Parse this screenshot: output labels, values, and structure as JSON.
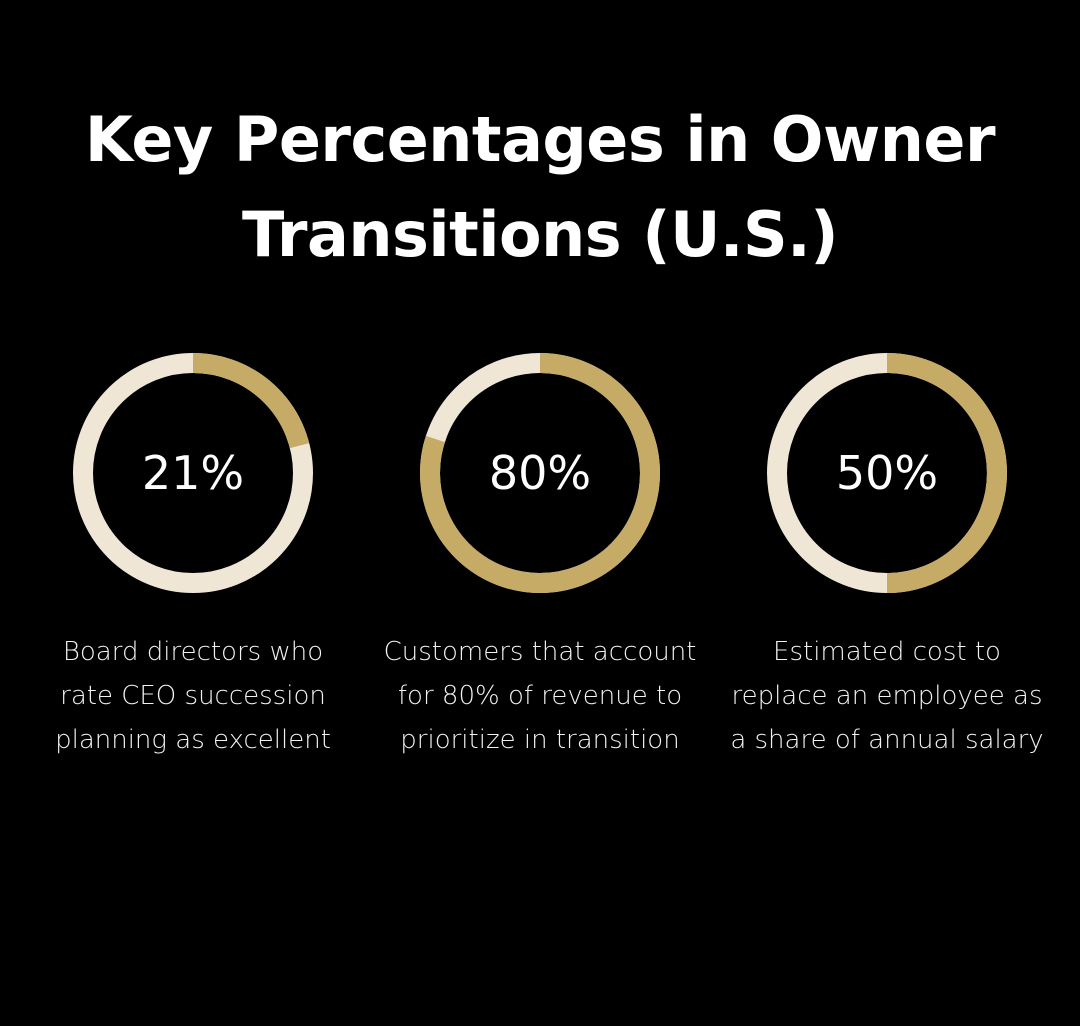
{
  "title": "Key Percentages in Owner Transitions (U.S.)",
  "colors": {
    "background": "#000000",
    "ring_track": "#efe6d6",
    "ring_fill": "#c6ab66",
    "text": "#ffffff"
  },
  "chart_data": [
    {
      "type": "pie",
      "value": 21,
      "label": "21%",
      "caption": "Board directors who rate CEO succession planning as excellent"
    },
    {
      "type": "pie",
      "value": 80,
      "label": "80%",
      "caption": "Customers that account for 80% of revenue to prioritize in transition"
    },
    {
      "type": "pie",
      "value": 50,
      "label": "50%",
      "caption": "Estimated cost to replace an employee as a share of annual salary"
    }
  ]
}
